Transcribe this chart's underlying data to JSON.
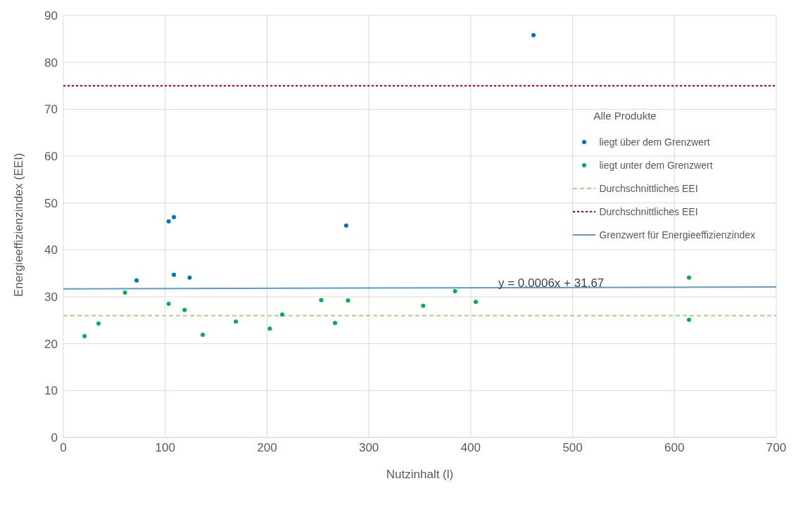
{
  "chart_data": {
    "type": "scatter",
    "xlabel": "Nutzinhalt (l)",
    "ylabel": "Energieeffizienzindex (EEI)",
    "legend_title": "Alle Produkte",
    "legend": "right",
    "grid": true,
    "marker": "circle",
    "xlim": [
      0,
      700
    ],
    "xticks": [
      0,
      100,
      200,
      300,
      400,
      500,
      600,
      700
    ],
    "ylim": [
      0,
      90
    ],
    "yticks": [
      0,
      10,
      20,
      30,
      40,
      50,
      60,
      70,
      80,
      90
    ],
    "series": [
      {
        "name": "liegt über dem Grenzwert",
        "color": "#0070c0",
        "x": [
          461.6,
          103.4,
          108.5,
          71.9,
          108.5,
          124,
          277.7
        ],
        "values": [
          85.8,
          46.1,
          47.0,
          33.5,
          34.7,
          34.1,
          45.2
        ]
      },
      {
        "name": "liegt unter dem Grenzwert",
        "color": "#00b050",
        "x": [
          20.8,
          34.5,
          60.5,
          103.4,
          119,
          136.8,
          169.4,
          202.7,
          214.9,
          253.2,
          266.7,
          279.5,
          353.3,
          384.6,
          404.9,
          614.3,
          614.3
        ],
        "values": [
          21.6,
          24.3,
          30.9,
          28.5,
          27.2,
          21.9,
          24.7,
          23.2,
          26.2,
          29.3,
          24.4,
          29.2,
          28.1,
          31.2,
          28.9,
          34.1,
          25.1
        ]
      },
      {
        "name": "Grenzwert für Energieeffizienzindex",
        "type": "line",
        "color": "#5b9bd5",
        "line_style": "solid",
        "marker": "none",
        "x": [
          0,
          700
        ],
        "values": [
          31.7,
          32.1
        ]
      }
    ],
    "ref_lines": [
      {
        "axis": "y",
        "value": 26,
        "label": "Durchschnittliches EEI",
        "color": "#a9d18e",
        "line_style": "dashed"
      },
      {
        "axis": "y",
        "value": 75,
        "label": "Durchschnittliches EEI",
        "color": "#c00000",
        "line_style": "dotted"
      }
    ],
    "annotations": [
      "y = 0.0006x + 31.67"
    ]
  }
}
